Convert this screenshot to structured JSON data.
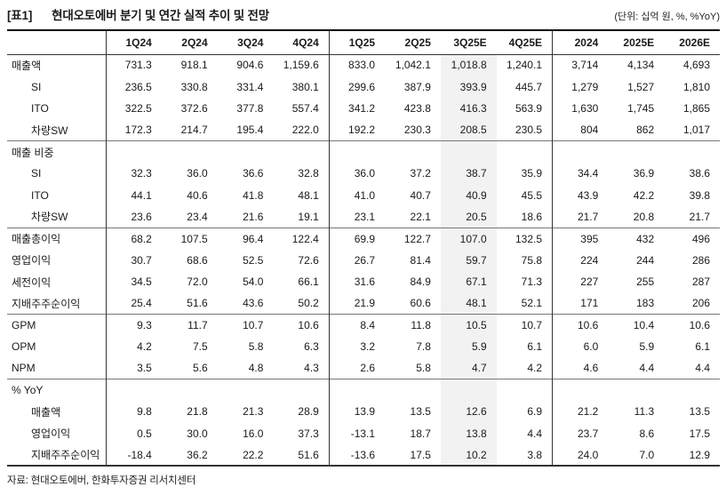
{
  "title": {
    "tag": "[표1]",
    "text": "현대오토에버 분기 및 연간 실적 추이 및 전망",
    "unit_note": "(단위: 십억 원, %, %YoY)"
  },
  "table": {
    "columns": [
      "1Q24",
      "2Q24",
      "3Q24",
      "4Q24",
      "1Q25",
      "2Q25",
      "3Q25E",
      "4Q25E",
      "2024",
      "2025E",
      "2026E"
    ],
    "group_end_indexes": [
      3,
      7
    ],
    "highlight_column": "3Q25E",
    "highlight_index": 6,
    "highlight_color": "#f2f2f2",
    "rows": [
      {
        "label": "매출액",
        "indent": false,
        "section_start": false,
        "values": [
          "731.3",
          "918.1",
          "904.6",
          "1,159.6",
          "833.0",
          "1,042.1",
          "1,018.8",
          "1,240.1",
          "3,714",
          "4,134",
          "4,693"
        ]
      },
      {
        "label": "SI",
        "indent": true,
        "section_start": false,
        "values": [
          "236.5",
          "330.8",
          "331.4",
          "380.1",
          "299.6",
          "387.9",
          "393.9",
          "445.7",
          "1,279",
          "1,527",
          "1,810"
        ]
      },
      {
        "label": "ITO",
        "indent": true,
        "section_start": false,
        "values": [
          "322.5",
          "372.6",
          "377.8",
          "557.4",
          "341.2",
          "423.8",
          "416.3",
          "563.9",
          "1,630",
          "1,745",
          "1,865"
        ]
      },
      {
        "label": "차량SW",
        "indent": true,
        "section_start": false,
        "values": [
          "172.3",
          "214.7",
          "195.4",
          "222.0",
          "192.2",
          "230.3",
          "208.5",
          "230.5",
          "804",
          "862",
          "1,017"
        ]
      },
      {
        "label": "매출 비중",
        "indent": false,
        "section_start": true,
        "values": [
          "",
          "",
          "",
          "",
          "",
          "",
          "",
          "",
          "",
          "",
          ""
        ]
      },
      {
        "label": "SI",
        "indent": true,
        "section_start": false,
        "values": [
          "32.3",
          "36.0",
          "36.6",
          "32.8",
          "36.0",
          "37.2",
          "38.7",
          "35.9",
          "34.4",
          "36.9",
          "38.6"
        ]
      },
      {
        "label": "ITO",
        "indent": true,
        "section_start": false,
        "values": [
          "44.1",
          "40.6",
          "41.8",
          "48.1",
          "41.0",
          "40.7",
          "40.9",
          "45.5",
          "43.9",
          "42.2",
          "39.8"
        ]
      },
      {
        "label": "차량SW",
        "indent": true,
        "section_start": false,
        "values": [
          "23.6",
          "23.4",
          "21.6",
          "19.1",
          "23.1",
          "22.1",
          "20.5",
          "18.6",
          "21.7",
          "20.8",
          "21.7"
        ]
      },
      {
        "label": "매출총이익",
        "indent": false,
        "section_start": true,
        "values": [
          "68.2",
          "107.5",
          "96.4",
          "122.4",
          "69.9",
          "122.7",
          "107.0",
          "132.5",
          "395",
          "432",
          "496"
        ]
      },
      {
        "label": "영업이익",
        "indent": false,
        "section_start": false,
        "values": [
          "30.7",
          "68.6",
          "52.5",
          "72.6",
          "26.7",
          "81.4",
          "59.7",
          "75.8",
          "224",
          "244",
          "286"
        ]
      },
      {
        "label": "세전이익",
        "indent": false,
        "section_start": false,
        "values": [
          "34.5",
          "72.0",
          "54.0",
          "66.1",
          "31.6",
          "84.9",
          "67.1",
          "71.3",
          "227",
          "255",
          "287"
        ]
      },
      {
        "label": "지배주주순이익",
        "indent": false,
        "section_start": false,
        "values": [
          "25.4",
          "51.6",
          "43.6",
          "50.2",
          "21.9",
          "60.6",
          "48.1",
          "52.1",
          "171",
          "183",
          "206"
        ]
      },
      {
        "label": "GPM",
        "indent": false,
        "section_start": true,
        "values": [
          "9.3",
          "11.7",
          "10.7",
          "10.6",
          "8.4",
          "11.8",
          "10.5",
          "10.7",
          "10.6",
          "10.4",
          "10.6"
        ]
      },
      {
        "label": "OPM",
        "indent": false,
        "section_start": false,
        "values": [
          "4.2",
          "7.5",
          "5.8",
          "6.3",
          "3.2",
          "7.8",
          "5.9",
          "6.1",
          "6.0",
          "5.9",
          "6.1"
        ]
      },
      {
        "label": "NPM",
        "indent": false,
        "section_start": false,
        "values": [
          "3.5",
          "5.6",
          "4.8",
          "4.3",
          "2.6",
          "5.8",
          "4.7",
          "4.2",
          "4.6",
          "4.4",
          "4.4"
        ]
      },
      {
        "label": "% YoY",
        "indent": false,
        "section_start": true,
        "values": [
          "",
          "",
          "",
          "",
          "",
          "",
          "",
          "",
          "",
          "",
          ""
        ]
      },
      {
        "label": "매출액",
        "indent": true,
        "section_start": false,
        "values": [
          "9.8",
          "21.8",
          "21.3",
          "28.9",
          "13.9",
          "13.5",
          "12.6",
          "6.9",
          "21.2",
          "11.3",
          "13.5"
        ]
      },
      {
        "label": "영업이익",
        "indent": true,
        "section_start": false,
        "values": [
          "0.5",
          "30.0",
          "16.0",
          "37.3",
          "-13.1",
          "18.7",
          "13.8",
          "4.4",
          "23.7",
          "8.6",
          "17.5"
        ]
      },
      {
        "label": "지배주주순이익",
        "indent": true,
        "section_start": false,
        "values": [
          "-18.4",
          "36.2",
          "22.2",
          "51.6",
          "-13.6",
          "17.5",
          "10.2",
          "3.8",
          "24.0",
          "7.0",
          "12.9"
        ]
      }
    ]
  },
  "source": "자료: 현대오토에버, 한화투자증권 리서치센터",
  "colors": {
    "text": "#1a1a1a",
    "border_strong": "#000000",
    "border_medium": "#333333",
    "border_section": "#777777",
    "highlight": "#f2f2f2"
  }
}
